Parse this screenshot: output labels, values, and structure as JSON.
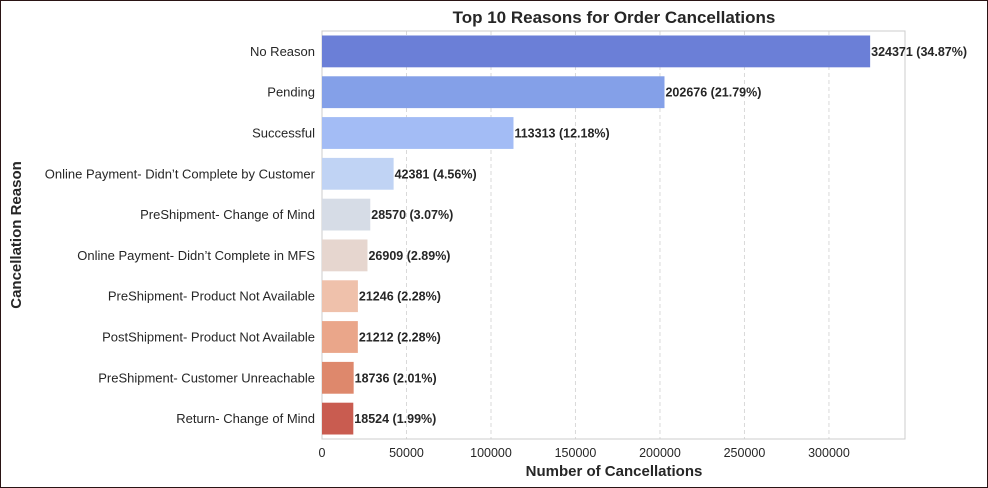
{
  "chart_data": {
    "type": "bar",
    "orientation": "horizontal",
    "title": "Top 10 Reasons for Order Cancellations",
    "xlabel": "Number of Cancellations",
    "ylabel": "Cancellation Reason",
    "xlim": [
      0,
      345000
    ],
    "x_ticks": [
      0,
      50000,
      100000,
      150000,
      200000,
      250000,
      300000
    ],
    "x_tick_labels": [
      "0",
      "50000",
      "100000",
      "150000",
      "200000",
      "250000",
      "300000"
    ],
    "grid": "vertical dashed",
    "categories": [
      "No Reason",
      "Pending",
      "Successful",
      "Online Payment- Didn’t Complete by Customer",
      "PreShipment- Change of Mind",
      "Online Payment- Didn’t Complete in MFS",
      "PreShipment- Product Not Available",
      "PostShipment- Product Not Available",
      "PreShipment- Customer Unreachable",
      "Return- Change of Mind"
    ],
    "values": [
      324371,
      202676,
      113313,
      42381,
      28570,
      26909,
      21246,
      21212,
      18736,
      18524
    ],
    "percentages": [
      "34.87%",
      "21.79%",
      "12.18%",
      "4.56%",
      "3.07%",
      "2.89%",
      "2.28%",
      "2.28%",
      "2.01%",
      "1.99%"
    ],
    "data_labels": [
      "324371 (34.87%)",
      "202676 (21.79%)",
      "113313 (12.18%)",
      "42381 (4.56%)",
      "28570 (3.07%)",
      "26909 (2.89%)",
      "21246 (2.28%)",
      "21212 (2.28%)",
      "18736 (2.01%)",
      "18524 (1.99%)"
    ],
    "colors": [
      "#6b7fd7",
      "#84a0e8",
      "#a3bcf5",
      "#c0d3f4",
      "#d6dce6",
      "#e6d6cf",
      "#efc1ab",
      "#eaa68a",
      "#de886c",
      "#c95c50"
    ]
  }
}
